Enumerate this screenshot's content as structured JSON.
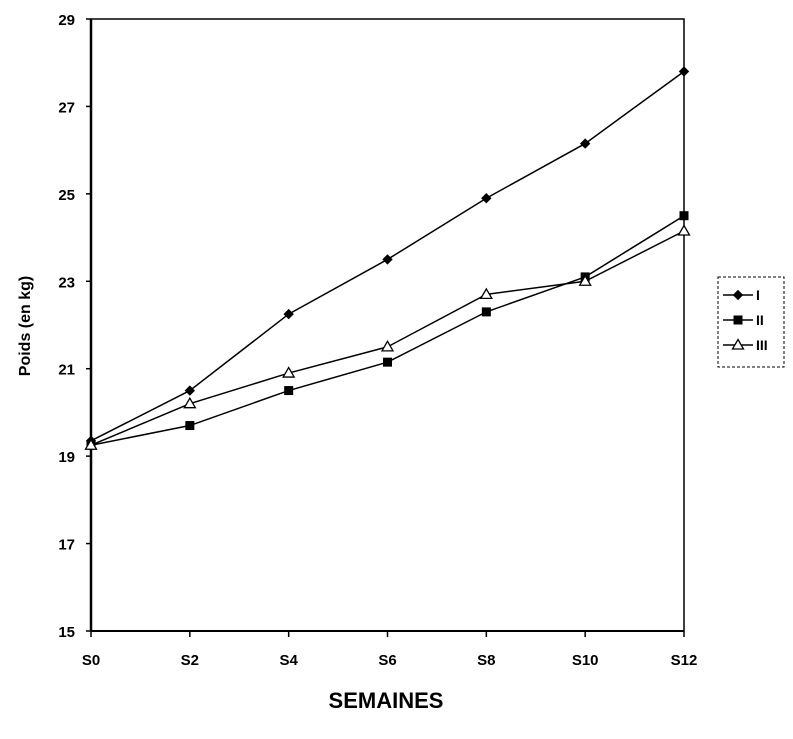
{
  "chart_data": {
    "type": "line",
    "title": "",
    "xlabel": "SEMAINES",
    "ylabel": "Poids (en kg)",
    "categories": [
      "S0",
      "S2",
      "S4",
      "S6",
      "S8",
      "S10",
      "S12"
    ],
    "ylim": [
      15,
      29
    ],
    "yticks": [
      "15",
      "17",
      "19",
      "21",
      "23",
      "25",
      "27",
      "29"
    ],
    "grid": false,
    "legend_position": "right",
    "series": [
      {
        "name": "I",
        "marker": "diamond",
        "values": [
          19.35,
          20.5,
          22.25,
          23.5,
          24.9,
          26.15,
          27.8
        ]
      },
      {
        "name": "II",
        "marker": "square",
        "values": [
          19.25,
          19.7,
          20.5,
          21.15,
          22.3,
          23.1,
          24.5
        ]
      },
      {
        "name": "III",
        "marker": "triangle-open",
        "values": [
          19.25,
          20.2,
          20.9,
          21.5,
          22.7,
          23.0,
          24.15
        ]
      }
    ]
  }
}
